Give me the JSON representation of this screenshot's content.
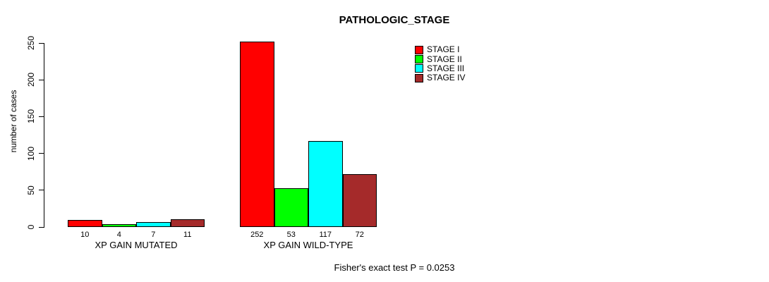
{
  "chart_data": {
    "type": "bar",
    "title": "PATHOLOGIC_STAGE",
    "xlabel": "",
    "ylabel": "number of cases",
    "ylim": [
      0,
      250
    ],
    "yticks": [
      0,
      50,
      100,
      150,
      200,
      250
    ],
    "grid": false,
    "legend_position": "top-right",
    "categories": [
      "XP GAIN MUTATED",
      "XP GAIN WILD-TYPE"
    ],
    "series": [
      {
        "name": "STAGE I",
        "color": "#FF0000",
        "values": [
          10,
          252
        ]
      },
      {
        "name": "STAGE II",
        "color": "#00FF00",
        "values": [
          4,
          53
        ]
      },
      {
        "name": "STAGE III",
        "color": "#00FFFF",
        "values": [
          7,
          117
        ]
      },
      {
        "name": "STAGE IV",
        "color": "#A52A2A",
        "values": [
          11,
          72
        ]
      }
    ],
    "bar_value_labels": [
      [
        "10",
        "4",
        "7",
        "11"
      ],
      [
        "252",
        "53",
        "117",
        "72"
      ]
    ],
    "annotation": "Fisher's exact test P = 0.0253"
  }
}
